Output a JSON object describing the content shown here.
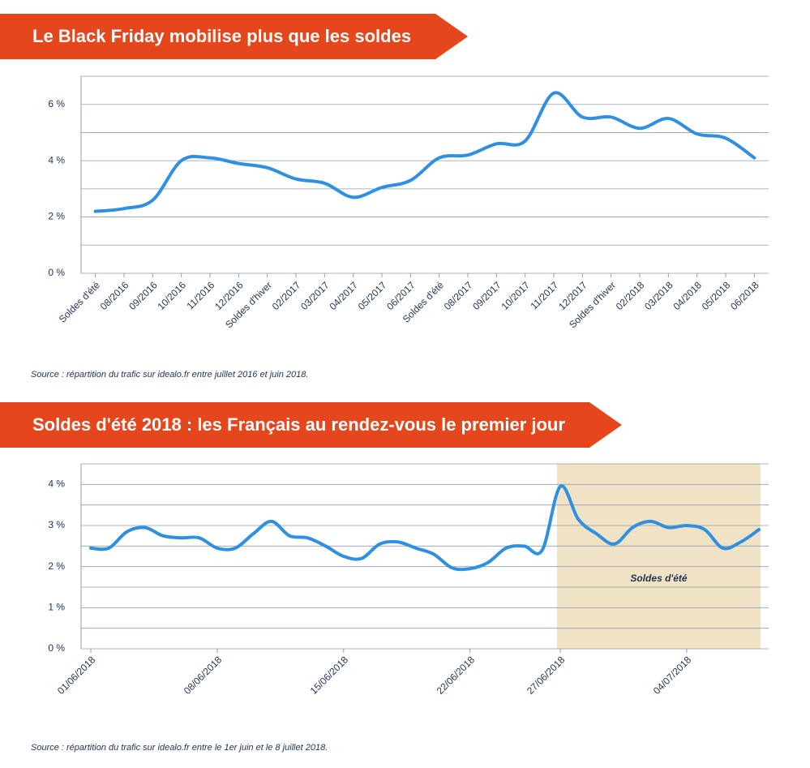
{
  "chart_data": [
    {
      "type": "line",
      "title": "Le Black Friday mobilise plus que les soldes",
      "source": "Source :  répartition du trafic sur idealo.fr entre juillet 2016 et juin 2018.",
      "categories": [
        "Soldes d'été",
        "08/2016",
        "09/2016",
        "10/2016",
        "11/2016",
        "12/2016",
        "Soldes d'hiver",
        "02/2017",
        "03/2017",
        "04/2017",
        "05/2017",
        "06/2017",
        "Soldes d'été",
        "08/2017",
        "09/2017",
        "10/2017",
        "11/2017",
        "12/2017",
        "Soldes d'hiver",
        "02/2018",
        "03/2018",
        "04/2018",
        "05/2018",
        "06/2018"
      ],
      "values": [
        2.2,
        2.3,
        2.6,
        4.0,
        4.1,
        3.9,
        3.75,
        3.35,
        3.2,
        2.7,
        3.05,
        3.3,
        4.1,
        4.2,
        4.6,
        4.7,
        6.4,
        5.55,
        5.55,
        5.15,
        5.5,
        4.95,
        4.8,
        4.1
      ],
      "color": "#2f8fe0",
      "ylim": [
        0,
        7
      ],
      "yticks": [
        {
          "value": 0,
          "label": "0 %"
        },
        {
          "value": 2,
          "label": "2 %"
        },
        {
          "value": 4,
          "label": "4 %"
        },
        {
          "value": 6,
          "label": "6 %"
        }
      ],
      "minor_yticks": [
        1,
        3,
        5,
        7
      ],
      "grid": true
    },
    {
      "type": "line",
      "title": "Soldes d'été 2018 : les Français au rendez-vous le premier jour",
      "source": "Source :  répartition du trafic sur idealo.fr entre le 1er juin et le 8 juillet 2018.",
      "categories": [
        "01/06/2018",
        null,
        null,
        null,
        null,
        null,
        null,
        "08/06/2018",
        null,
        null,
        null,
        null,
        null,
        null,
        "15/06/2018",
        null,
        null,
        null,
        null,
        null,
        null,
        "22/06/2018",
        null,
        null,
        null,
        null,
        "27/06/2018",
        null,
        null,
        null,
        null,
        null,
        null,
        "04/07/2018",
        null,
        null,
        null,
        null
      ],
      "values": [
        2.45,
        2.45,
        2.85,
        2.95,
        2.75,
        2.7,
        2.7,
        2.45,
        2.45,
        2.8,
        3.1,
        2.75,
        2.7,
        2.5,
        2.25,
        2.2,
        2.55,
        2.6,
        2.45,
        2.3,
        1.97,
        1.95,
        2.1,
        2.45,
        2.5,
        2.4,
        3.95,
        3.15,
        2.8,
        2.55,
        2.95,
        3.1,
        2.95,
        3.0,
        2.9,
        2.45,
        2.6,
        2.9
      ],
      "color": "#2f8fe0",
      "ylim": [
        0,
        4.5
      ],
      "yticks": [
        {
          "value": 0,
          "label": "0 %"
        },
        {
          "value": 1,
          "label": "1 %"
        },
        {
          "value": 2,
          "label": "2 %"
        },
        {
          "value": 3,
          "label": "3 %"
        },
        {
          "value": 4,
          "label": "4 %"
        }
      ],
      "minor_yticks": [
        0.5,
        1.5,
        2.5,
        3.5,
        4.5
      ],
      "grid": true,
      "shaded": {
        "label": "Soldes d'été",
        "start": "27/06/2018",
        "color": "#f0e2c4"
      }
    }
  ]
}
